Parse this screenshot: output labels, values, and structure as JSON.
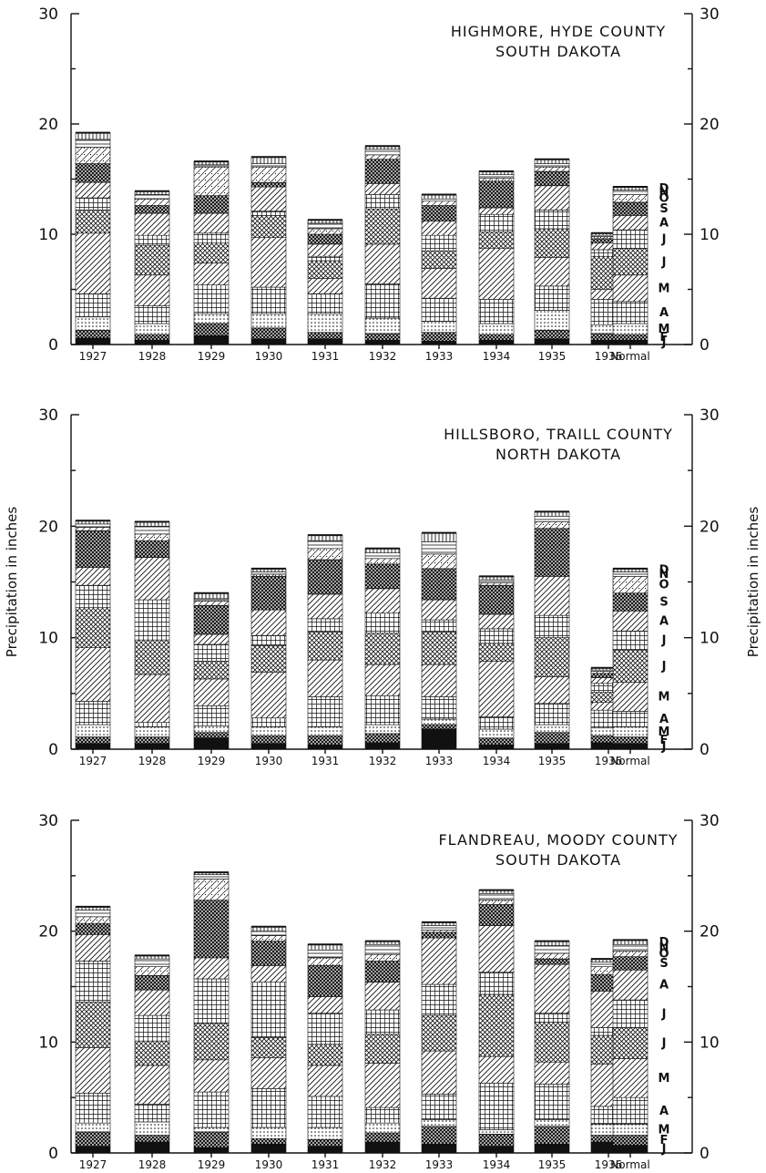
{
  "ylabel": "Precipitation in inches",
  "chart_data": [
    {
      "type": "bar",
      "stacked": true,
      "title": "HIGHMORE, HYDE COUNTY",
      "subtitle": "SOUTH DAKOTA",
      "categories": [
        "1927",
        "1928",
        "1929",
        "1930",
        "1931",
        "1932",
        "1933",
        "1934",
        "1935",
        "1936",
        "Normal"
      ],
      "ylim": [
        0,
        30
      ],
      "yticks": [
        0,
        10,
        20,
        30
      ],
      "stack_labels": [
        "J",
        "F",
        "M",
        "A",
        "M",
        "J",
        "J",
        "A",
        "S",
        "O",
        "N",
        "D"
      ],
      "series": [
        {
          "name": "J",
          "values": [
            0.6,
            0.4,
            0.8,
            0.5,
            0.5,
            0.4,
            0.3,
            0.4,
            0.5,
            0.4,
            0.4
          ]
        },
        {
          "name": "F",
          "values": [
            0.7,
            0.5,
            1.1,
            1.0,
            0.6,
            0.6,
            0.8,
            0.5,
            0.8,
            0.6,
            0.5
          ]
        },
        {
          "name": "M",
          "values": [
            1.2,
            1.0,
            0.9,
            1.3,
            1.7,
            1.4,
            1.0,
            1.0,
            1.8,
            0.8,
            1.0
          ]
        },
        {
          "name": "A",
          "values": [
            2.1,
            1.6,
            2.6,
            2.4,
            1.8,
            3.1,
            2.1,
            2.2,
            2.2,
            2.3,
            2.0
          ]
        },
        {
          "name": "M",
          "values": [
            5.5,
            2.8,
            2.0,
            4.5,
            1.4,
            3.6,
            2.7,
            4.6,
            2.6,
            0.9,
            2.4
          ]
        },
        {
          "name": "J",
          "values": [
            2.1,
            2.7,
            1.8,
            2.0,
            1.6,
            3.2,
            1.6,
            1.5,
            2.6,
            3.0,
            2.4
          ]
        },
        {
          "name": "J",
          "values": [
            1.1,
            0.9,
            0.9,
            0.4,
            0.4,
            1.3,
            1.4,
            1.6,
            1.7,
            0.6,
            1.7
          ]
        },
        {
          "name": "A",
          "values": [
            1.4,
            2.0,
            1.8,
            2.2,
            1.1,
            1.0,
            1.3,
            0.6,
            2.2,
            0.6,
            1.3
          ]
        },
        {
          "name": "S",
          "values": [
            1.7,
            0.7,
            1.6,
            0.4,
            0.9,
            2.2,
            1.4,
            2.4,
            1.3,
            0.4,
            1.2
          ]
        },
        {
          "name": "O",
          "values": [
            1.5,
            0.6,
            2.6,
            1.4,
            0.5,
            0.4,
            0.4,
            0.3,
            0.4,
            0.2,
            0.7
          ]
        },
        {
          "name": "N",
          "values": [
            0.7,
            0.4,
            0.2,
            0.3,
            0.5,
            0.5,
            0.2,
            0.3,
            0.3,
            0.1,
            0.4
          ]
        },
        {
          "name": "D",
          "values": [
            0.6,
            0.3,
            0.3,
            0.6,
            0.3,
            0.3,
            0.4,
            0.3,
            0.4,
            0.2,
            0.3
          ]
        }
      ]
    },
    {
      "type": "bar",
      "stacked": true,
      "title": "HILLSBORO, TRAILL COUNTY",
      "subtitle": "NORTH DAKOTA",
      "categories": [
        "1927",
        "1928",
        "1929",
        "1930",
        "1931",
        "1932",
        "1933",
        "1934",
        "1935",
        "1936",
        "Normal"
      ],
      "ylim": [
        0,
        30
      ],
      "yticks": [
        0,
        10,
        20,
        30
      ],
      "stack_labels": [
        "J",
        "F",
        "M",
        "A",
        "M",
        "J",
        "J",
        "A",
        "S",
        "O",
        "N",
        "D"
      ],
      "series": [
        {
          "name": "J",
          "values": [
            0.5,
            0.5,
            1.0,
            0.5,
            0.4,
            0.6,
            1.8,
            0.4,
            0.5,
            0.6,
            0.5
          ]
        },
        {
          "name": "F",
          "values": [
            0.6,
            0.6,
            0.5,
            0.7,
            0.8,
            0.8,
            0.4,
            0.6,
            1.0,
            0.6,
            0.6
          ]
        },
        {
          "name": "M",
          "values": [
            1.1,
            0.9,
            0.6,
            0.8,
            0.8,
            0.8,
            0.5,
            0.8,
            0.7,
            0.7,
            0.9
          ]
        },
        {
          "name": "A",
          "values": [
            2.1,
            0.4,
            1.8,
            0.8,
            2.7,
            2.6,
            2.0,
            1.1,
            1.9,
            1.6,
            1.4
          ]
        },
        {
          "name": "M",
          "values": [
            4.8,
            4.3,
            2.4,
            4.1,
            3.3,
            2.8,
            2.9,
            5.0,
            2.4,
            0.7,
            2.6
          ]
        },
        {
          "name": "J",
          "values": [
            3.6,
            3.1,
            1.6,
            2.4,
            2.5,
            2.8,
            2.9,
            1.6,
            3.5,
            0.9,
            2.9
          ]
        },
        {
          "name": "J",
          "values": [
            2.0,
            3.6,
            1.5,
            0.9,
            1.2,
            1.8,
            1.1,
            1.3,
            2.0,
            0.8,
            1.7
          ]
        },
        {
          "name": "A",
          "values": [
            1.6,
            3.8,
            0.9,
            2.3,
            2.2,
            2.2,
            1.8,
            1.3,
            3.5,
            0.5,
            1.8
          ]
        },
        {
          "name": "S",
          "values": [
            3.3,
            1.5,
            2.6,
            3.0,
            3.1,
            2.2,
            2.8,
            2.6,
            4.3,
            0.4,
            1.6
          ]
        },
        {
          "name": "O",
          "values": [
            0.3,
            0.6,
            0.4,
            0.2,
            1.0,
            0.5,
            1.3,
            0.2,
            0.6,
            0.2,
            1.5
          ]
        },
        {
          "name": "N",
          "values": [
            0.3,
            0.7,
            0.2,
            0.2,
            0.7,
            0.5,
            1.1,
            0.3,
            0.5,
            0.1,
            0.4
          ]
        },
        {
          "name": "D",
          "values": [
            0.3,
            0.4,
            0.5,
            0.3,
            0.5,
            0.4,
            0.8,
            0.3,
            0.4,
            0.2,
            0.3
          ]
        }
      ]
    },
    {
      "type": "bar",
      "stacked": true,
      "title": "FLANDREAU, MOODY COUNTY",
      "subtitle": "SOUTH DAKOTA",
      "categories": [
        "1927",
        "1928",
        "1929",
        "1930",
        "1931",
        "1932",
        "1933",
        "1934",
        "1935",
        "1936",
        "Normal"
      ],
      "ylim": [
        0,
        30
      ],
      "yticks": [
        0,
        10,
        20,
        30
      ],
      "stack_labels": [
        "J",
        "F",
        "M",
        "A",
        "M",
        "J",
        "J",
        "A",
        "S",
        "O",
        "N",
        "D"
      ],
      "series": [
        {
          "name": "J",
          "values": [
            0.6,
            1.0,
            0.5,
            0.8,
            0.6,
            1.0,
            0.8,
            0.6,
            0.8,
            1.0,
            0.7
          ]
        },
        {
          "name": "F",
          "values": [
            1.3,
            0.6,
            1.4,
            0.5,
            0.6,
            0.8,
            1.6,
            1.1,
            1.6,
            0.6,
            0.9
          ]
        },
        {
          "name": "M",
          "values": [
            0.8,
            1.2,
            0.4,
            1.0,
            1.1,
            0.9,
            0.6,
            0.4,
            0.6,
            1.0,
            1.0
          ]
        },
        {
          "name": "A",
          "values": [
            2.7,
            1.6,
            3.2,
            3.5,
            2.8,
            1.4,
            2.3,
            4.2,
            3.2,
            1.6,
            2.4
          ]
        },
        {
          "name": "M",
          "values": [
            4.1,
            3.5,
            2.9,
            2.8,
            2.8,
            4.0,
            3.9,
            2.4,
            2.0,
            3.8,
            3.5
          ]
        },
        {
          "name": "J",
          "values": [
            4.1,
            2.2,
            3.3,
            1.8,
            1.9,
            2.6,
            3.2,
            5.6,
            3.6,
            2.6,
            2.8
          ]
        },
        {
          "name": "J",
          "values": [
            3.7,
            2.3,
            4.0,
            5.0,
            2.8,
            2.2,
            2.8,
            2.0,
            0.8,
            0.7,
            2.5
          ]
        },
        {
          "name": "A",
          "values": [
            2.4,
            2.3,
            1.9,
            1.5,
            1.5,
            2.5,
            4.2,
            4.2,
            4.4,
            3.3,
            2.7
          ]
        },
        {
          "name": "S",
          "values": [
            1.0,
            1.3,
            5.2,
            2.2,
            2.8,
            1.9,
            0.5,
            1.9,
            0.5,
            1.5,
            1.2
          ]
        },
        {
          "name": "O",
          "values": [
            0.6,
            0.8,
            1.9,
            0.5,
            0.7,
            0.6,
            0.2,
            0.4,
            0.5,
            0.7,
            0.5
          ]
        },
        {
          "name": "N",
          "values": [
            0.6,
            0.7,
            0.4,
            0.4,
            0.7,
            0.9,
            0.4,
            0.6,
            0.7,
            0.4,
            0.6
          ]
        },
        {
          "name": "D",
          "values": [
            0.3,
            0.3,
            0.2,
            0.4,
            0.5,
            0.3,
            0.3,
            0.3,
            0.4,
            0.3,
            0.4
          ]
        }
      ]
    }
  ]
}
